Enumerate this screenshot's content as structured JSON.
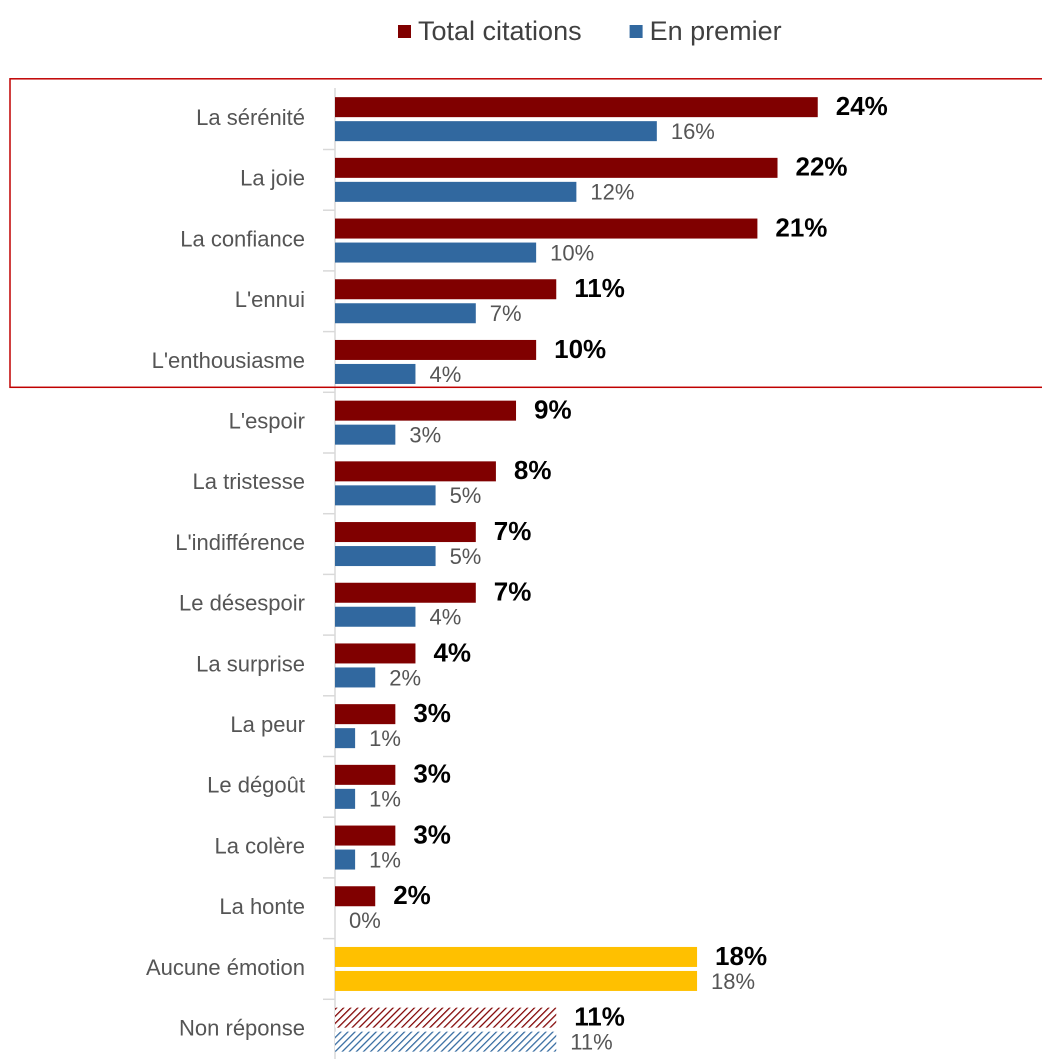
{
  "chart_data": {
    "type": "hbar",
    "categories": [
      "La sérénité",
      "La joie",
      "La confiance",
      "L'ennui",
      "L'enthousiasme",
      "L'espoir",
      "La tristesse",
      "L'indifférence",
      "Le désespoir",
      "La surprise",
      "La peur",
      "Le dégoût",
      "La colère",
      "La honte",
      "Aucune émotion",
      "Non réponse"
    ],
    "series": [
      {
        "name": "Total citations",
        "color": "#800000",
        "values": [
          24,
          22,
          21,
          11,
          10,
          9,
          8,
          7,
          7,
          4,
          3,
          3,
          3,
          2,
          18,
          11
        ],
        "value_labels": [
          "24%",
          "22%",
          "21%",
          "11%",
          "10%",
          "9%",
          "8%",
          "7%",
          "7%",
          "4%",
          "3%",
          "3%",
          "3%",
          "2%",
          "18%",
          "11%"
        ]
      },
      {
        "name": "En premier",
        "color": "#31689f",
        "values": [
          16,
          12,
          10,
          7,
          4,
          3,
          5,
          5,
          4,
          2,
          1,
          1,
          1,
          0,
          18,
          11
        ],
        "value_labels": [
          "16%",
          "12%",
          "10%",
          "7%",
          "4%",
          "3%",
          "5%",
          "5%",
          "4%",
          "2%",
          "1%",
          "1%",
          "1%",
          "0%",
          "18%",
          "11%"
        ]
      }
    ],
    "special_color": {
      "index": 14,
      "color": "#ffc000"
    },
    "hatched_index": 15,
    "highlight": {
      "from": 0,
      "to": 4,
      "color": "#c00000"
    },
    "xlim": [
      0,
      35
    ],
    "legend": "top"
  }
}
